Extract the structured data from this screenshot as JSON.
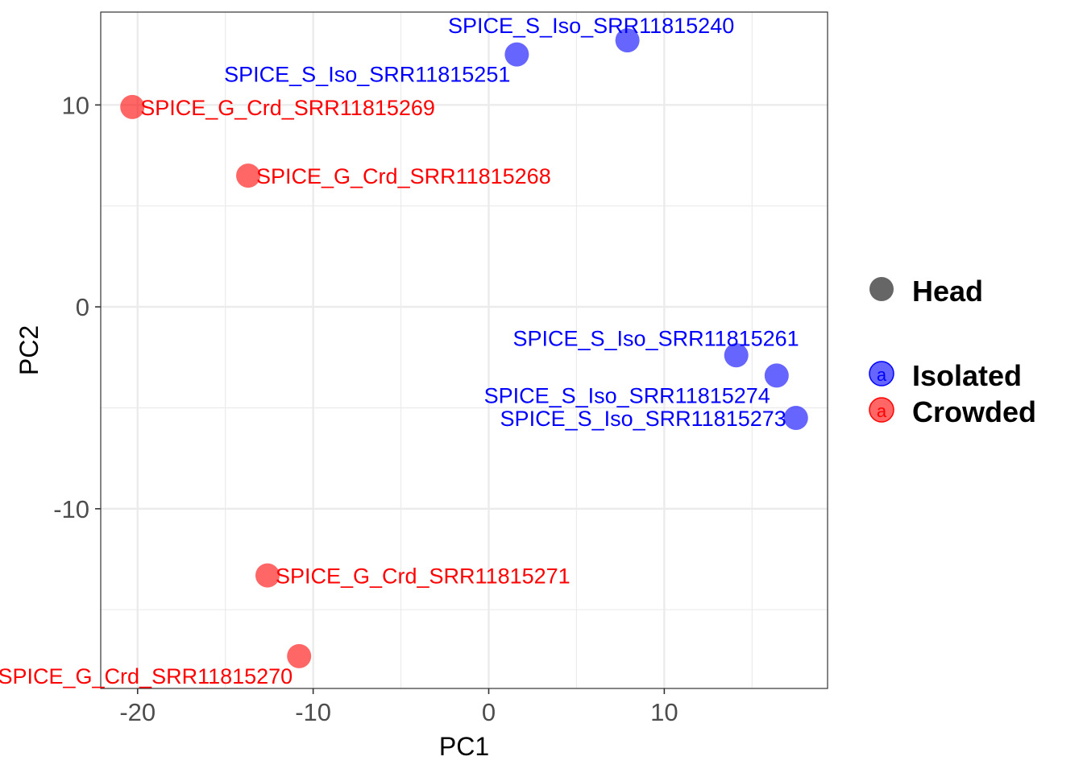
{
  "chart_data": {
    "type": "scatter",
    "xlabel": "PC1",
    "ylabel": "PC2",
    "xlim": [
      -22.1,
      19.3
    ],
    "ylim": [
      -18.9,
      14.6
    ],
    "x_ticks": [
      -20,
      -10,
      0,
      10
    ],
    "y_ticks": [
      -10,
      0,
      10
    ],
    "x_tick_labels": [
      "-20",
      "-10",
      "0",
      "10"
    ],
    "y_tick_labels": [
      "-10",
      "0",
      "10"
    ],
    "grid": true,
    "legend_position": "right",
    "colors": {
      "Isolated": "#0000ff",
      "Crowded": "#ff0000"
    },
    "point_opacity": 0.6,
    "points": [
      {
        "label": "SPICE_S_Iso_SRR11815240",
        "group": "Isolated",
        "x": 7.9,
        "y": 13.2,
        "label_anchor": "above"
      },
      {
        "label": "SPICE_S_Iso_SRR11815251",
        "group": "Isolated",
        "x": 1.6,
        "y": 12.5,
        "label_anchor": "below-left"
      },
      {
        "label": "SPICE_G_Crd_SRR11815269",
        "group": "Crowded",
        "x": -20.3,
        "y": 9.9,
        "label_anchor": "right"
      },
      {
        "label": "SPICE_G_Crd_SRR11815268",
        "group": "Crowded",
        "x": -13.7,
        "y": 6.5,
        "label_anchor": "right"
      },
      {
        "label": "SPICE_S_Iso_SRR11815261",
        "group": "Isolated",
        "x": 14.1,
        "y": -2.4,
        "label_anchor": "above-left"
      },
      {
        "label": "SPICE_S_Iso_SRR11815274",
        "group": "Isolated",
        "x": 16.4,
        "y": -3.4,
        "label_anchor": "below-left"
      },
      {
        "label": "SPICE_S_Iso_SRR11815273",
        "group": "Isolated",
        "x": 17.5,
        "y": -5.5,
        "label_anchor": "left"
      },
      {
        "label": "SPICE_G_Crd_SRR11815271",
        "group": "Crowded",
        "x": -12.6,
        "y": -13.3,
        "label_anchor": "right"
      },
      {
        "label": "SPICE_G_Crd_SRR11815270",
        "group": "Crowded",
        "x": -10.8,
        "y": -17.3,
        "label_anchor": "below-left"
      }
    ],
    "legend": {
      "shape": {
        "label": "Head",
        "color": "#666666"
      },
      "groups": [
        {
          "label": "Isolated",
          "color": "#0000ff",
          "key_glyph": "a"
        },
        {
          "label": "Crowded",
          "color": "#ff0000",
          "key_glyph": "a"
        }
      ]
    }
  }
}
